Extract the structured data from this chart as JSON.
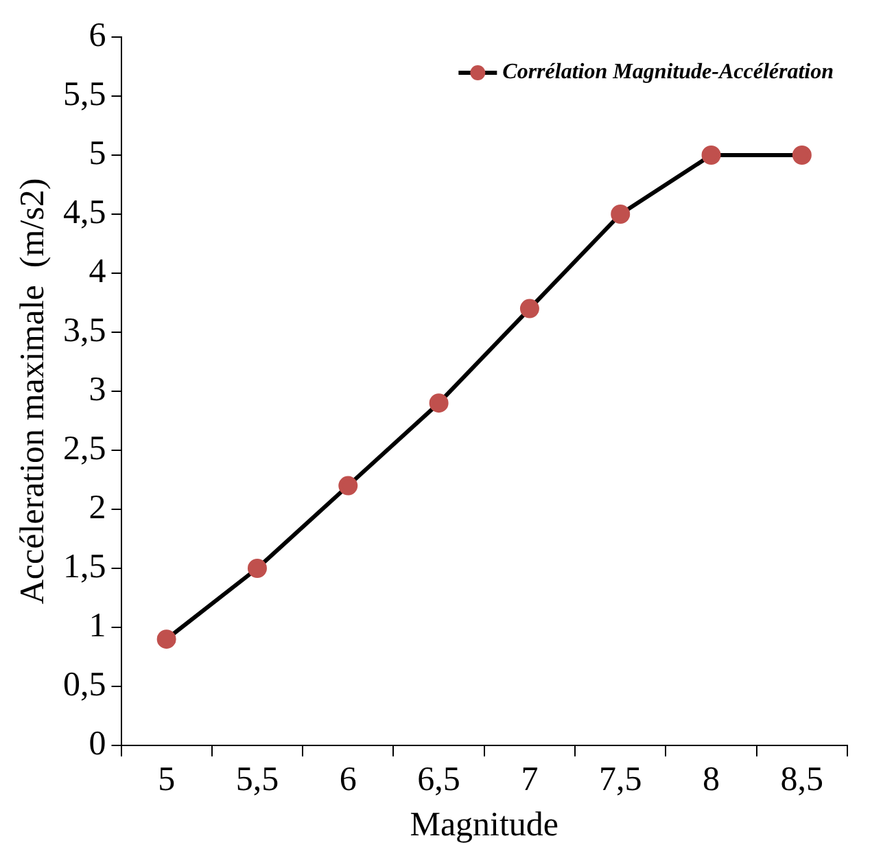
{
  "chart_data": {
    "type": "line",
    "xlabel": "Magnitude",
    "ylabel": "Accéleration maximale  (m/s2)",
    "categories": [
      "5",
      "5,5",
      "6",
      "6,5",
      "7",
      "7,5",
      "8",
      "8,5"
    ],
    "series": [
      {
        "name": "Corrélation Magnitude-Accélération",
        "color": "#c0504d",
        "values": [
          0.9,
          1.5,
          2.2,
          2.9,
          3.7,
          4.5,
          5,
          5
        ]
      }
    ],
    "ylim": [
      0,
      6
    ],
    "yticks": [
      0,
      {
        "value": 0.5,
        "label": "0,5"
      },
      1,
      {
        "value": 1.5,
        "label": "1,5"
      },
      2,
      {
        "value": 2.5,
        "label": "2,5"
      },
      3,
      {
        "value": 3.5,
        "label": "3,5"
      },
      4,
      {
        "value": 4.5,
        "label": "4,5"
      },
      5,
      {
        "value": 5.5,
        "label": "5,5"
      },
      6
    ],
    "grid": false,
    "legend": "top right",
    "marker": "circle",
    "line_style": "solid"
  }
}
